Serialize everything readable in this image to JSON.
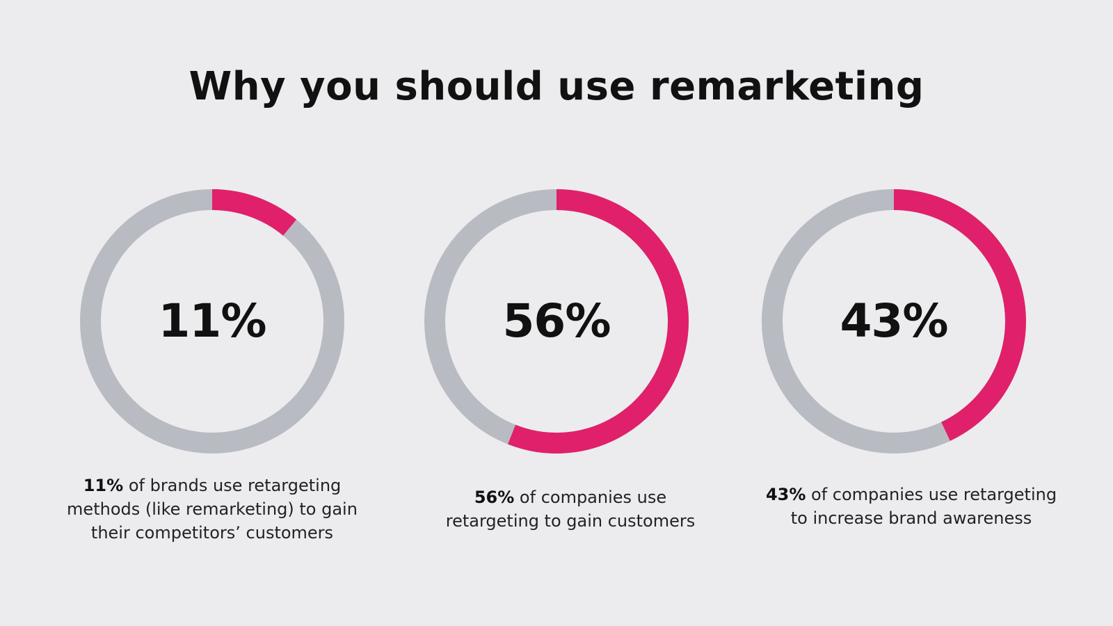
{
  "chart_data": {
    "type": "pie",
    "title": "Why you should use remarketing",
    "colors": {
      "highlight": "#e0206a",
      "track": "#b8bbc1"
    },
    "items": [
      {
        "value": 11,
        "label": "11%",
        "caption_bold": "11%",
        "caption_rest": " of brands use retargeting methods (like remarketing) to gain their competitors’ customers"
      },
      {
        "value": 56,
        "label": "56%",
        "caption_bold": "56%",
        "caption_rest": " of companies use retargeting to gain customers"
      },
      {
        "value": 43,
        "label": "43%",
        "caption_bold": "43%",
        "caption_rest": " of companies use retargeting to increase brand awareness"
      }
    ]
  }
}
